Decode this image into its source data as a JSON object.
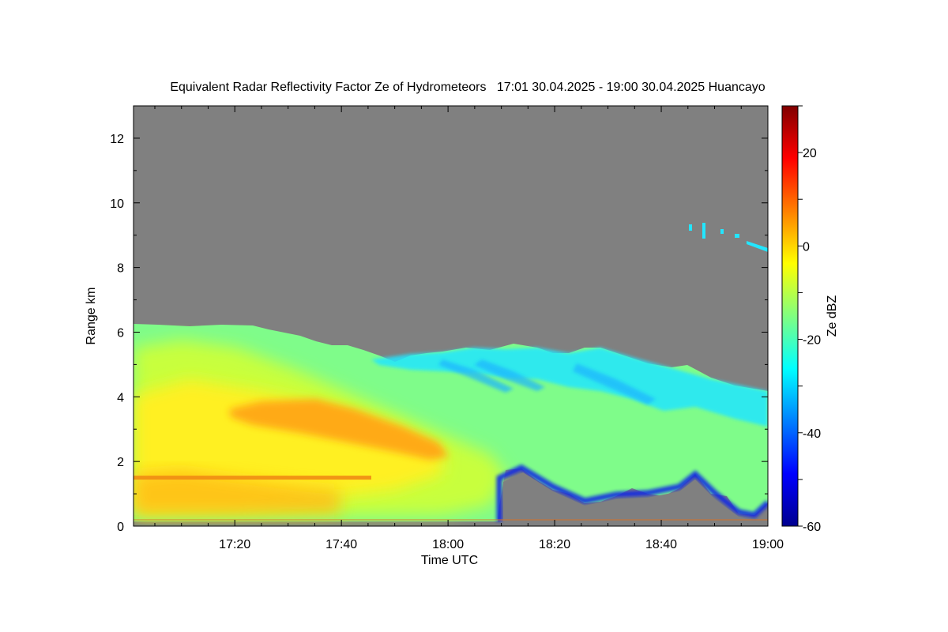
{
  "chart_data": {
    "type": "heatmap",
    "title": "Equivalent Radar Reflectivity Factor Ze of Hydrometeors   17:01 30.04.2025 - 19:00 30.04.2025 Huancayo",
    "xlabel": "Time UTC",
    "ylabel": "Range km",
    "xlim": [
      "17:01",
      "19:00"
    ],
    "ylim": [
      0,
      13
    ],
    "x_ticks": [
      "17:20",
      "17:40",
      "18:00",
      "18:20",
      "18:40",
      "19:00"
    ],
    "y_ticks": [
      0,
      2,
      4,
      6,
      8,
      10,
      12
    ],
    "no_data_color": "#808080",
    "colorbar": {
      "label": "Ze dBZ",
      "range": [
        -60,
        30
      ],
      "ticks": [
        -60,
        -40,
        -20,
        0,
        20
      ],
      "colormap": "jet"
    },
    "echo_regions": [
      {
        "name": "main cloud layer",
        "time_start": "17:01",
        "time_end": "19:00",
        "top_km_start": 6.2,
        "top_km_end": 4.2,
        "typical_dbz": -15
      },
      {
        "name": "enhanced reflectivity band",
        "time_start": "17:20",
        "time_end": "18:01",
        "top_km": 3.7,
        "bottom_km": 2.2,
        "typical_dbz": 0
      },
      {
        "name": "melting layer",
        "range_km": 1.5,
        "time_start": "17:01",
        "time_end": "17:50",
        "typical_dbz": 2
      },
      {
        "name": "cirrus fragments",
        "time_start": "18:46",
        "time_end": "19:00",
        "range_km": 9.0,
        "typical_dbz": -30
      },
      {
        "name": "clear low levels",
        "time_start": "18:12",
        "time_end": "19:00",
        "top_km": 1.5,
        "typical_dbz": null
      }
    ]
  },
  "colors": {
    "frame": "#000000",
    "background": "#ffffff"
  }
}
